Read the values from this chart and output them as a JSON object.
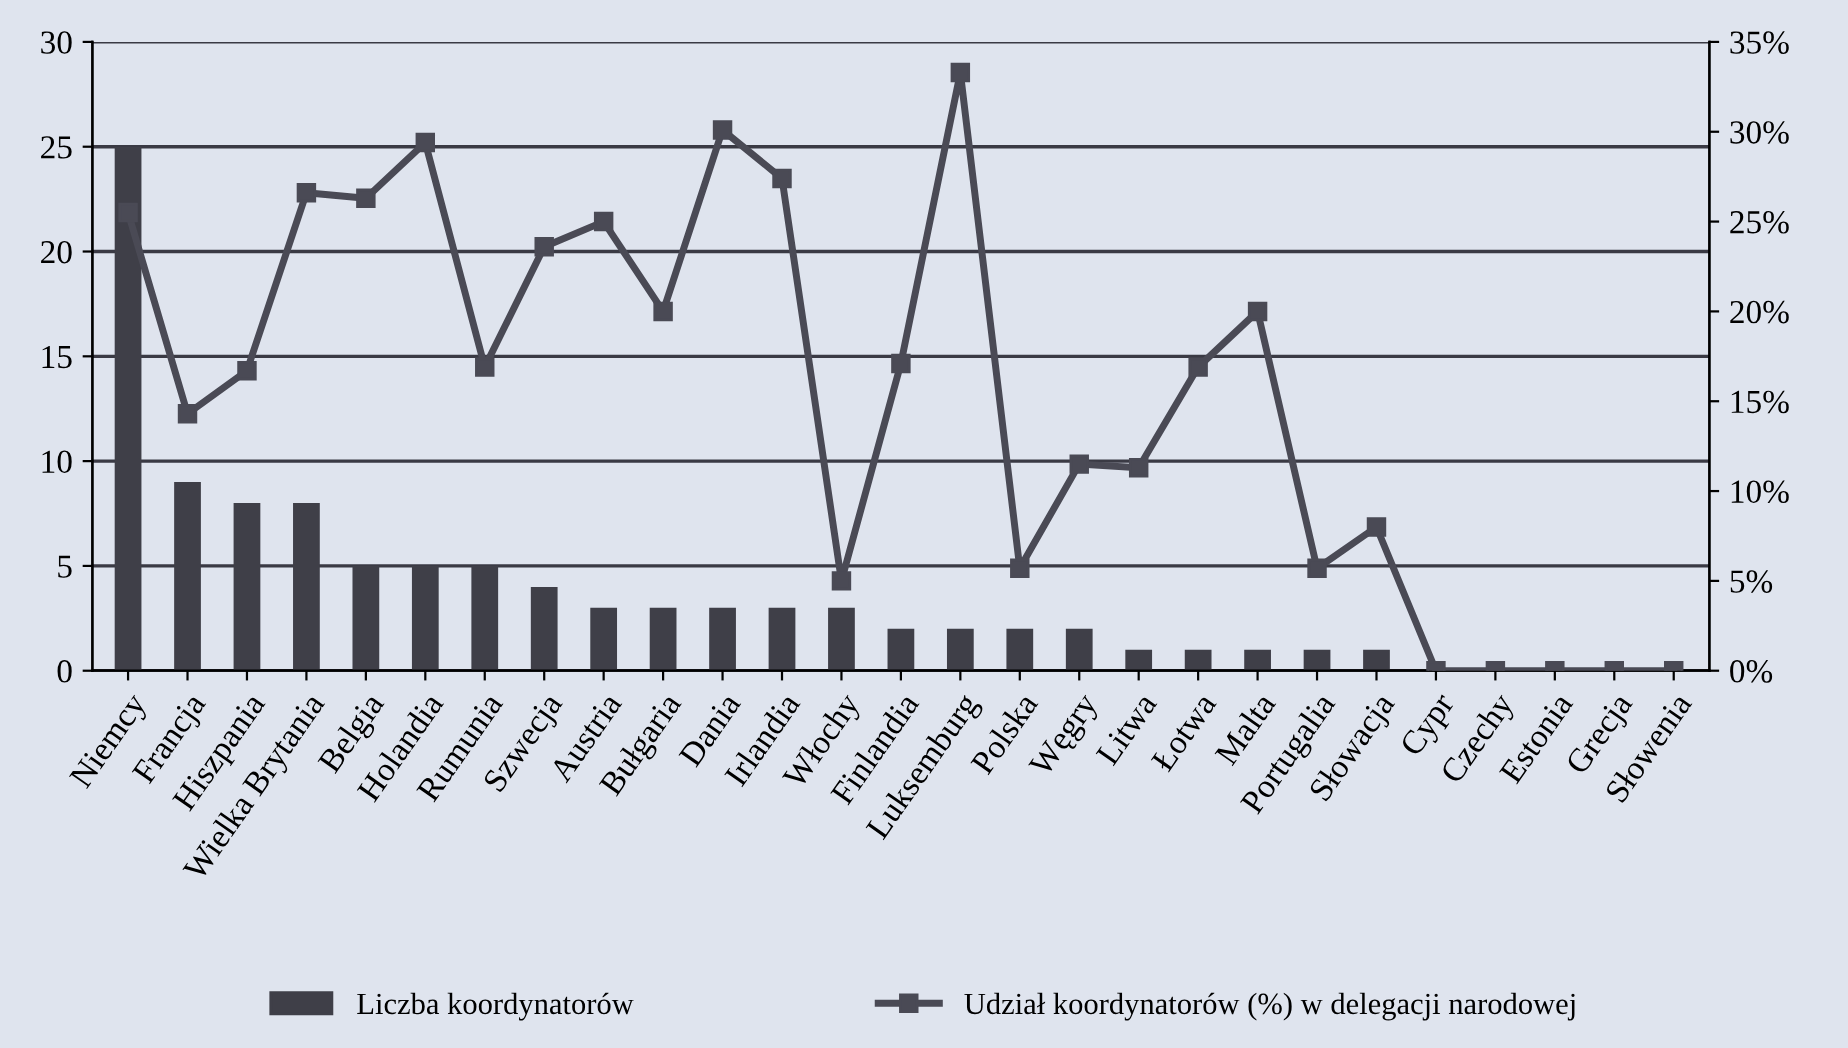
{
  "chart_data": {
    "type": "bar",
    "categories": [
      "Niemcy",
      "Francja",
      "Hiszpania",
      "Wielka Brytania",
      "Belgia",
      "Holandia",
      "Rumunia",
      "Szwecja",
      "Austria",
      "Bułgaria",
      "Dania",
      "Irlandia",
      "Włochy",
      "Finlandia",
      "Luksemburg",
      "Polska",
      "Węgry",
      "Litwa",
      "Łotwa",
      "Malta",
      "Portugalia",
      "Słowacja",
      "Cypr",
      "Czechy",
      "Estonia",
      "Grecja",
      "Słowenia"
    ],
    "series": [
      {
        "name": "Liczba koordynatorów",
        "color": "#3f3f48",
        "values": [
          25,
          9,
          8,
          8,
          5,
          5,
          5,
          4,
          3,
          3,
          3,
          3,
          3,
          2,
          2,
          2,
          2,
          1,
          1,
          1,
          1,
          1,
          0,
          0,
          0,
          0,
          0
        ]
      },
      {
        "name": "Udział koordynatorów (%) w delegacji narodowej",
        "type": "line",
        "axis": "y2",
        "color": "#4a4a55",
        "marker": "square",
        "values": [
          25.5,
          14.3,
          16.7,
          26.6,
          26.3,
          29.4,
          16.9,
          23.6,
          25,
          20,
          30.1,
          27.4,
          5,
          17.1,
          33.3,
          5.7,
          11.5,
          11.3,
          16.9,
          20,
          5.7,
          8,
          0,
          0,
          0,
          0,
          0
        ]
      }
    ],
    "ylim": [
      0,
      30
    ],
    "yticks": [
      0,
      5,
      10,
      15,
      20,
      25,
      30
    ],
    "y2lim": [
      0,
      35
    ],
    "y2ticks": [
      {
        "value": 0,
        "label": "0%"
      },
      {
        "value": 5,
        "label": "5%"
      },
      {
        "value": 10,
        "label": "10%"
      },
      {
        "value": 15,
        "label": "15%"
      },
      {
        "value": 20,
        "label": "20%"
      },
      {
        "value": 25,
        "label": "25%"
      },
      {
        "value": 30,
        "label": "30%"
      },
      {
        "value": 35,
        "label": "35%"
      }
    ],
    "grid": "y",
    "legend": "bottom"
  }
}
